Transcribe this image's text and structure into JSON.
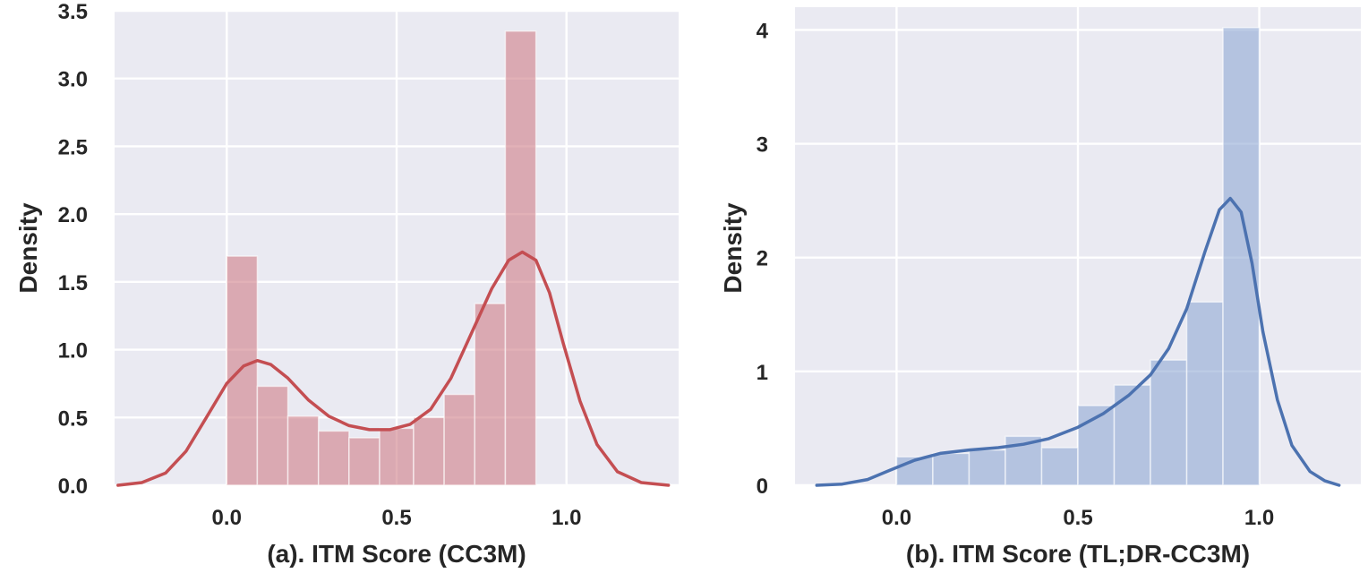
{
  "chart_data": [
    {
      "type": "histogram-kde",
      "xlabel": "(a). ITM Score (CC3M)",
      "ylabel": "Density",
      "xlim": [
        -0.33,
        1.33
      ],
      "ylim": [
        0.0,
        3.5
      ],
      "xticks": [
        0.0,
        0.5,
        1.0
      ],
      "xtick_labels": [
        "0.0",
        "0.5",
        "1.0"
      ],
      "yticks": [
        0.0,
        0.5,
        1.0,
        1.5,
        2.0,
        2.5,
        3.0,
        3.5
      ],
      "ytick_labels": [
        "0.0",
        "0.5",
        "1.0",
        "1.5",
        "2.0",
        "2.5",
        "3.0",
        "3.5"
      ],
      "grid": true,
      "bar_color": "#cf7d87",
      "line_color": "#c44e52",
      "bins": [
        {
          "x0": 0.0,
          "x1": 0.09,
          "density": 1.69
        },
        {
          "x0": 0.09,
          "x1": 0.18,
          "density": 0.73
        },
        {
          "x0": 0.18,
          "x1": 0.27,
          "density": 0.51
        },
        {
          "x0": 0.27,
          "x1": 0.36,
          "density": 0.4
        },
        {
          "x0": 0.36,
          "x1": 0.45,
          "density": 0.35
        },
        {
          "x0": 0.45,
          "x1": 0.55,
          "density": 0.42
        },
        {
          "x0": 0.55,
          "x1": 0.64,
          "density": 0.5
        },
        {
          "x0": 0.64,
          "x1": 0.73,
          "density": 0.67
        },
        {
          "x0": 0.73,
          "x1": 0.82,
          "density": 1.34
        },
        {
          "x0": 0.82,
          "x1": 0.91,
          "density": 3.35
        }
      ],
      "kde": [
        [
          -0.32,
          0.0
        ],
        [
          -0.25,
          0.02
        ],
        [
          -0.18,
          0.09
        ],
        [
          -0.12,
          0.25
        ],
        [
          -0.06,
          0.5
        ],
        [
          0.0,
          0.75
        ],
        [
          0.05,
          0.88
        ],
        [
          0.09,
          0.92
        ],
        [
          0.13,
          0.89
        ],
        [
          0.18,
          0.79
        ],
        [
          0.24,
          0.63
        ],
        [
          0.3,
          0.51
        ],
        [
          0.36,
          0.44
        ],
        [
          0.42,
          0.41
        ],
        [
          0.48,
          0.41
        ],
        [
          0.54,
          0.45
        ],
        [
          0.6,
          0.56
        ],
        [
          0.66,
          0.79
        ],
        [
          0.72,
          1.12
        ],
        [
          0.78,
          1.45
        ],
        [
          0.83,
          1.66
        ],
        [
          0.87,
          1.72
        ],
        [
          0.91,
          1.66
        ],
        [
          0.95,
          1.42
        ],
        [
          0.99,
          1.05
        ],
        [
          1.04,
          0.62
        ],
        [
          1.09,
          0.3
        ],
        [
          1.15,
          0.1
        ],
        [
          1.22,
          0.02
        ],
        [
          1.3,
          0.0
        ]
      ]
    },
    {
      "type": "histogram-kde",
      "xlabel": "(b). ITM Score (TL;DR-CC3M)",
      "ylabel": "Density",
      "xlim": [
        -0.28,
        1.28
      ],
      "ylim": [
        0,
        4.2
      ],
      "xticks": [
        0.0,
        0.5,
        1.0
      ],
      "xtick_labels": [
        "0.0",
        "0.5",
        "1.0"
      ],
      "yticks": [
        0,
        1,
        2,
        3,
        4
      ],
      "ytick_labels": [
        "0",
        "1",
        "2",
        "3",
        "4"
      ],
      "grid": true,
      "bar_color": "#8fa8d4",
      "line_color": "#4c72b0",
      "bins": [
        {
          "x0": 0.0,
          "x1": 0.1,
          "density": 0.25
        },
        {
          "x0": 0.1,
          "x1": 0.2,
          "density": 0.28
        },
        {
          "x0": 0.2,
          "x1": 0.3,
          "density": 0.31
        },
        {
          "x0": 0.3,
          "x1": 0.4,
          "density": 0.43
        },
        {
          "x0": 0.4,
          "x1": 0.5,
          "density": 0.33
        },
        {
          "x0": 0.5,
          "x1": 0.6,
          "density": 0.7
        },
        {
          "x0": 0.6,
          "x1": 0.7,
          "density": 0.88
        },
        {
          "x0": 0.7,
          "x1": 0.8,
          "density": 1.1
        },
        {
          "x0": 0.8,
          "x1": 0.9,
          "density": 1.61
        },
        {
          "x0": 0.9,
          "x1": 1.0,
          "density": 4.02
        }
      ],
      "kde": [
        [
          -0.22,
          0.0
        ],
        [
          -0.15,
          0.01
        ],
        [
          -0.08,
          0.05
        ],
        [
          -0.02,
          0.13
        ],
        [
          0.05,
          0.22
        ],
        [
          0.12,
          0.28
        ],
        [
          0.2,
          0.31
        ],
        [
          0.28,
          0.33
        ],
        [
          0.35,
          0.36
        ],
        [
          0.42,
          0.41
        ],
        [
          0.5,
          0.51
        ],
        [
          0.57,
          0.63
        ],
        [
          0.64,
          0.79
        ],
        [
          0.7,
          0.97
        ],
        [
          0.75,
          1.2
        ],
        [
          0.8,
          1.55
        ],
        [
          0.85,
          2.05
        ],
        [
          0.89,
          2.42
        ],
        [
          0.92,
          2.52
        ],
        [
          0.95,
          2.4
        ],
        [
          0.98,
          1.95
        ],
        [
          1.01,
          1.35
        ],
        [
          1.05,
          0.75
        ],
        [
          1.09,
          0.35
        ],
        [
          1.14,
          0.12
        ],
        [
          1.18,
          0.04
        ],
        [
          1.22,
          0.0
        ]
      ]
    }
  ]
}
